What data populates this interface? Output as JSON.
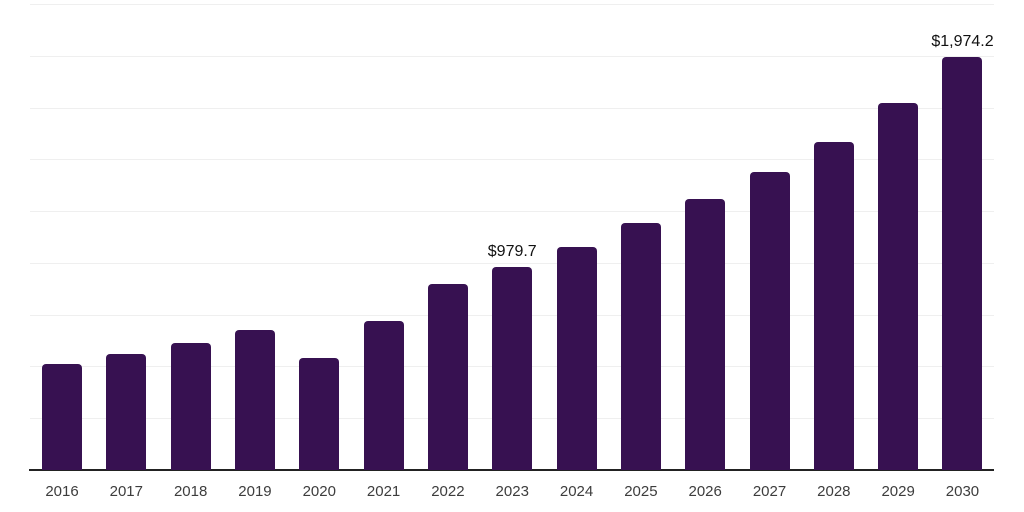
{
  "chart_data": {
    "type": "bar",
    "title": "",
    "xlabel": "",
    "ylabel": "",
    "categories": [
      "2016",
      "2017",
      "2018",
      "2019",
      "2020",
      "2021",
      "2022",
      "2023",
      "2024",
      "2025",
      "2026",
      "2027",
      "2028",
      "2029",
      "2030"
    ],
    "values": [
      515,
      566,
      617,
      678,
      546,
      722,
      895,
      979.7,
      1074,
      1188,
      1301,
      1428,
      1570,
      1758,
      1974.2
    ],
    "value_labels": {
      "2023": "$979.7",
      "2030": "$1,974.2"
    },
    "ylim": [
      0,
      2230
    ],
    "y_axis_tick_labels_visible": false,
    "grid": "horizontal-light",
    "legend": "none",
    "colors": {
      "bar": "#371151",
      "axis_line": "#222222",
      "gridline": "#efefef",
      "tick_label": "#3d3d3d",
      "value_label": "#111111",
      "background": "#ffffff"
    }
  }
}
